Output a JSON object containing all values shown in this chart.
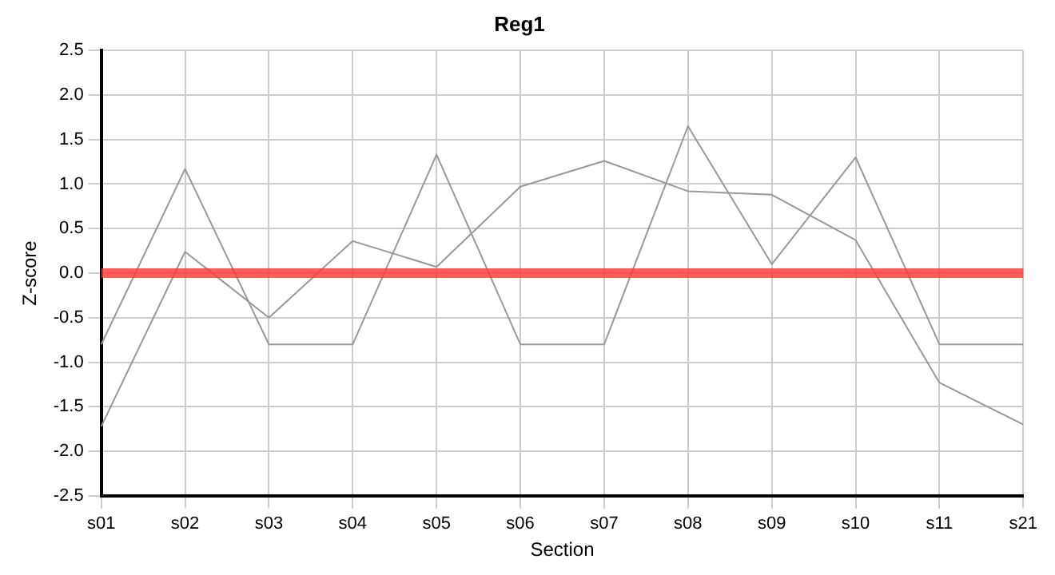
{
  "chart_data": {
    "type": "line",
    "title": "Reg1",
    "xlabel": "Section",
    "ylabel": "Z-score",
    "categories": [
      "s01",
      "s02",
      "s03",
      "s04",
      "s05",
      "s06",
      "s07",
      "s08",
      "s09",
      "s10",
      "s11",
      "s21"
    ],
    "series": [
      {
        "color": "#999999",
        "values": [
          -0.8,
          1.17,
          -0.8,
          -0.8,
          1.33,
          -0.8,
          -0.8,
          1.65,
          0.1,
          1.3,
          -0.8,
          -0.8
        ]
      },
      {
        "color": "#999999",
        "values": [
          -1.72,
          0.24,
          -0.5,
          0.36,
          0.07,
          0.97,
          1.26,
          0.92,
          0.88,
          0.37,
          -1.23,
          -1.7
        ]
      }
    ],
    "ylim": [
      -2.5,
      2.5
    ],
    "yticks": [
      -2.5,
      {
        "value": -2,
        "label": "-2.0"
      },
      -1.5,
      {
        "value": -1,
        "label": "-1.0"
      },
      -0.5,
      {
        "value": 0,
        "label": "0.0"
      },
      0.5,
      {
        "value": 1,
        "label": "1.0"
      },
      1.5,
      {
        "value": 2,
        "label": "2.0"
      },
      2.5
    ],
    "ref_lines": [
      {
        "axis": "y",
        "value": 0,
        "color": "#ff3333"
      }
    ],
    "grid": true,
    "legend": false,
    "marker": "none",
    "line_style": "solid"
  }
}
